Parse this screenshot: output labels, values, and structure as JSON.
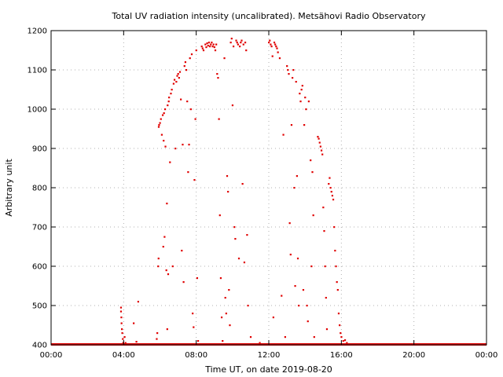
{
  "chart_data": {
    "type": "scatter",
    "title": "Total UV radiation intensity (uncalibrated). Metsähovi Radio Observatory",
    "xlabel": "Time UT, on date 2019-08-20",
    "ylabel": "Arbitrary unit",
    "x_unit": "hours",
    "xlim": [
      0,
      24
    ],
    "ylim": [
      400,
      1200
    ],
    "x_ticks": [
      {
        "value": 0,
        "label": "00:00"
      },
      {
        "value": 4,
        "label": "04:00"
      },
      {
        "value": 8,
        "label": "08:00"
      },
      {
        "value": 12,
        "label": "12:00"
      },
      {
        "value": 16,
        "label": "16:00"
      },
      {
        "value": 20,
        "label": "20:00"
      },
      {
        "value": 24,
        "label": "00:00"
      }
    ],
    "y_ticks": [
      {
        "value": 400,
        "label": "400"
      },
      {
        "value": 500,
        "label": "500"
      },
      {
        "value": 600,
        "label": "600"
      },
      {
        "value": 700,
        "label": "700"
      },
      {
        "value": 800,
        "label": "800"
      },
      {
        "value": 900,
        "label": "900"
      },
      {
        "value": 1000,
        "label": "1000"
      },
      {
        "value": 1100,
        "label": "1100"
      },
      {
        "value": 1200,
        "label": "1200"
      }
    ],
    "grid": true,
    "legend": "none",
    "point_color": "#e00000",
    "series": [
      {
        "baseline": {
          "x_start": 0,
          "x_end": 24,
          "y": 400
        },
        "points": [
          [
            3.85,
            495
          ],
          [
            3.85,
            485
          ],
          [
            3.87,
            470
          ],
          [
            3.88,
            455
          ],
          [
            3.9,
            440
          ],
          [
            3.92,
            430
          ],
          [
            3.95,
            415
          ],
          [
            3.97,
            405
          ],
          [
            4.05,
            420
          ],
          [
            4.1,
            405
          ],
          [
            4.3,
            402
          ],
          [
            4.55,
            455
          ],
          [
            4.7,
            408
          ],
          [
            4.8,
            510
          ],
          [
            5.82,
            415
          ],
          [
            5.85,
            430
          ],
          [
            5.9,
            600
          ],
          [
            5.92,
            620
          ],
          [
            5.93,
            955
          ],
          [
            5.95,
            960
          ],
          [
            6.0,
            965
          ],
          [
            6.05,
            975
          ],
          [
            6.1,
            935
          ],
          [
            6.15,
            985
          ],
          [
            6.18,
            650
          ],
          [
            6.2,
            920
          ],
          [
            6.22,
            990
          ],
          [
            6.25,
            675
          ],
          [
            6.28,
            1000
          ],
          [
            6.3,
            905
          ],
          [
            6.35,
            590
          ],
          [
            6.38,
            760
          ],
          [
            6.4,
            440
          ],
          [
            6.42,
            1010
          ],
          [
            6.45,
            580
          ],
          [
            6.48,
            1020
          ],
          [
            6.5,
            1030
          ],
          [
            6.55,
            865
          ],
          [
            6.6,
            1040
          ],
          [
            6.65,
            1050
          ],
          [
            6.7,
            600
          ],
          [
            6.75,
            1065
          ],
          [
            6.8,
            1075
          ],
          [
            6.85,
            900
          ],
          [
            6.9,
            1070
          ],
          [
            6.95,
            1085
          ],
          [
            7.0,
            1090
          ],
          [
            7.05,
            1080
          ],
          [
            7.1,
            1095
          ],
          [
            7.15,
            1025
          ],
          [
            7.2,
            640
          ],
          [
            7.25,
            910
          ],
          [
            7.3,
            560
          ],
          [
            7.35,
            1110
          ],
          [
            7.4,
            1120
          ],
          [
            7.45,
            1100
          ],
          [
            7.5,
            1020
          ],
          [
            7.55,
            840
          ],
          [
            7.6,
            910
          ],
          [
            7.65,
            1130
          ],
          [
            7.7,
            1000
          ],
          [
            7.75,
            1140
          ],
          [
            7.8,
            480
          ],
          [
            7.85,
            445
          ],
          [
            7.9,
            820
          ],
          [
            7.95,
            975
          ],
          [
            8.0,
            1150
          ],
          [
            8.05,
            570
          ],
          [
            8.1,
            410
          ],
          [
            8.3,
            1160
          ],
          [
            8.35,
            1155
          ],
          [
            8.4,
            1150
          ],
          [
            8.5,
            1165
          ],
          [
            8.55,
            1158
          ],
          [
            8.6,
            1168
          ],
          [
            8.65,
            1162
          ],
          [
            8.7,
            1170
          ],
          [
            8.75,
            1160
          ],
          [
            8.8,
            1165
          ],
          [
            8.85,
            1170
          ],
          [
            8.9,
            1160
          ],
          [
            8.95,
            1165
          ],
          [
            9.0,
            1158
          ],
          [
            9.05,
            1150
          ],
          [
            9.1,
            1165
          ],
          [
            9.15,
            1090
          ],
          [
            9.2,
            1080
          ],
          [
            9.25,
            975
          ],
          [
            9.3,
            730
          ],
          [
            9.35,
            570
          ],
          [
            9.4,
            470
          ],
          [
            9.45,
            410
          ],
          [
            9.55,
            1130
          ],
          [
            9.6,
            520
          ],
          [
            9.65,
            480
          ],
          [
            9.7,
            830
          ],
          [
            9.75,
            790
          ],
          [
            9.8,
            540
          ],
          [
            9.85,
            450
          ],
          [
            9.9,
            1170
          ],
          [
            9.95,
            1180
          ],
          [
            10.0,
            1010
          ],
          [
            10.05,
            1160
          ],
          [
            10.1,
            700
          ],
          [
            10.15,
            670
          ],
          [
            10.2,
            1175
          ],
          [
            10.25,
            1170
          ],
          [
            10.3,
            1165
          ],
          [
            10.35,
            620
          ],
          [
            10.4,
            1160
          ],
          [
            10.45,
            1170
          ],
          [
            10.5,
            1175
          ],
          [
            10.55,
            810
          ],
          [
            10.6,
            1165
          ],
          [
            10.65,
            610
          ],
          [
            10.7,
            1170
          ],
          [
            10.75,
            1150
          ],
          [
            10.8,
            680
          ],
          [
            10.85,
            500
          ],
          [
            11.0,
            420
          ],
          [
            11.5,
            405
          ],
          [
            12.0,
            1170
          ],
          [
            12.05,
            1175
          ],
          [
            12.1,
            1165
          ],
          [
            12.15,
            1160
          ],
          [
            12.2,
            1135
          ],
          [
            12.25,
            470
          ],
          [
            12.3,
            1170
          ],
          [
            12.35,
            1165
          ],
          [
            12.4,
            1160
          ],
          [
            12.45,
            1155
          ],
          [
            12.5,
            1145
          ],
          [
            12.6,
            1130
          ],
          [
            12.7,
            525
          ],
          [
            12.8,
            935
          ],
          [
            12.9,
            420
          ],
          [
            13.0,
            1110
          ],
          [
            13.05,
            1100
          ],
          [
            13.1,
            1090
          ],
          [
            13.15,
            710
          ],
          [
            13.2,
            630
          ],
          [
            13.25,
            960
          ],
          [
            13.3,
            1080
          ],
          [
            13.35,
            1100
          ],
          [
            13.4,
            800
          ],
          [
            13.45,
            550
          ],
          [
            13.5,
            1070
          ],
          [
            13.55,
            830
          ],
          [
            13.6,
            620
          ],
          [
            13.65,
            500
          ],
          [
            13.7,
            1040
          ],
          [
            13.75,
            1020
          ],
          [
            13.8,
            1050
          ],
          [
            13.85,
            1060
          ],
          [
            13.9,
            540
          ],
          [
            13.95,
            960
          ],
          [
            14.0,
            1030
          ],
          [
            14.05,
            1000
          ],
          [
            14.1,
            500
          ],
          [
            14.15,
            460
          ],
          [
            14.2,
            1020
          ],
          [
            14.3,
            870
          ],
          [
            14.35,
            600
          ],
          [
            14.4,
            840
          ],
          [
            14.45,
            730
          ],
          [
            14.5,
            420
          ],
          [
            14.7,
            930
          ],
          [
            14.75,
            925
          ],
          [
            14.8,
            915
          ],
          [
            14.85,
            905
          ],
          [
            14.9,
            895
          ],
          [
            14.95,
            885
          ],
          [
            15.0,
            750
          ],
          [
            15.05,
            690
          ],
          [
            15.1,
            600
          ],
          [
            15.15,
            520
          ],
          [
            15.2,
            440
          ],
          [
            15.3,
            810
          ],
          [
            15.35,
            825
          ],
          [
            15.4,
            800
          ],
          [
            15.45,
            790
          ],
          [
            15.5,
            780
          ],
          [
            15.55,
            770
          ],
          [
            15.6,
            700
          ],
          [
            15.65,
            640
          ],
          [
            15.7,
            600
          ],
          [
            15.75,
            560
          ],
          [
            15.8,
            540
          ],
          [
            15.85,
            480
          ],
          [
            15.9,
            450
          ],
          [
            15.95,
            430
          ],
          [
            16.0,
            420
          ],
          [
            16.1,
            410
          ],
          [
            16.2,
            412
          ],
          [
            16.3,
            405
          ]
        ]
      }
    ]
  }
}
